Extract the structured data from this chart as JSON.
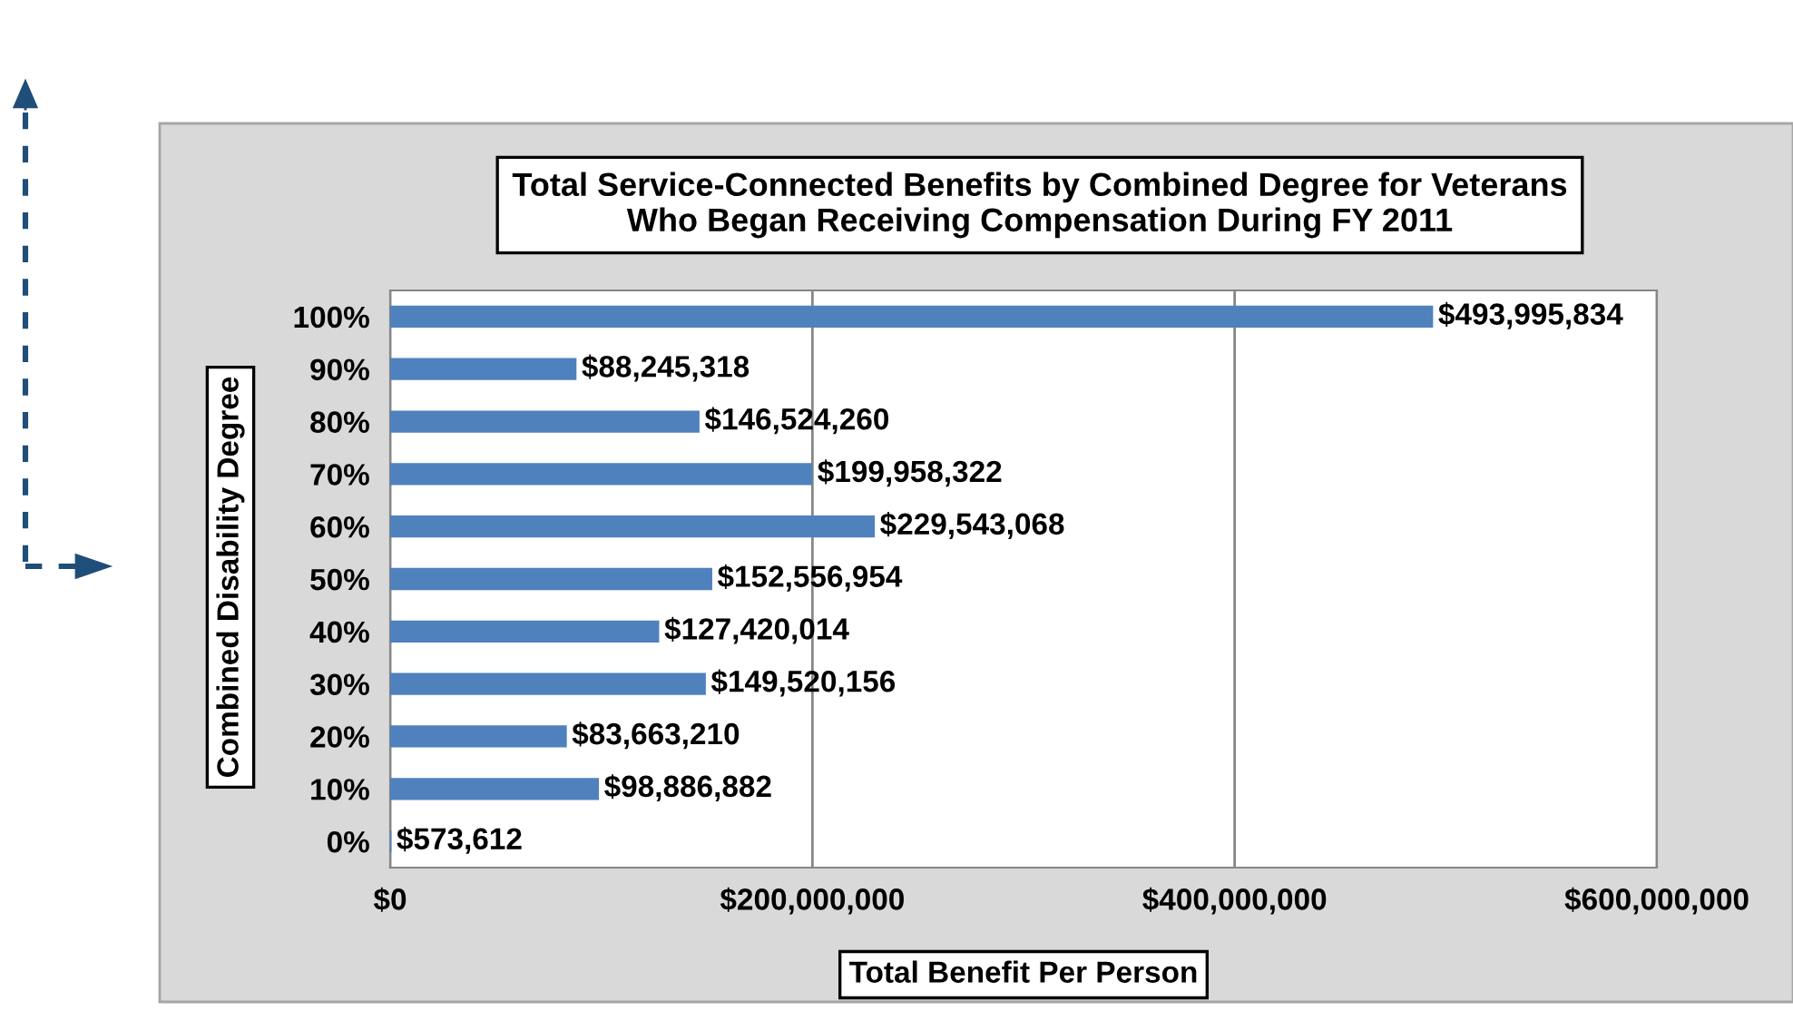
{
  "chart_data": {
    "type": "bar",
    "orientation": "horizontal",
    "title": "Total Service-Connected Benefits by Combined Degree for Veterans\nWho Began Receiving Compensation During FY 2011",
    "xlabel": "Total Benefit Per Person",
    "ylabel": "Combined Disability Degree",
    "categories": [
      "100%",
      "90%",
      "80%",
      "70%",
      "60%",
      "50%",
      "40%",
      "30%",
      "20%",
      "10%",
      "0%"
    ],
    "values": [
      493995834,
      88245318,
      146524260,
      199958322,
      229543068,
      152556954,
      127420014,
      149520156,
      83663210,
      98886882,
      573612
    ],
    "value_labels": [
      "$493,995,834",
      "$88,245,318",
      "$146,524,260",
      "$199,958,322",
      "$229,543,068",
      "$152,556,954",
      "$127,420,014",
      "$149,520,156",
      "$83,663,210",
      "$98,886,882",
      "$573,612"
    ],
    "color": "#4f81bd",
    "xlim": [
      0,
      600000000
    ],
    "xticks": [
      {
        "value": 0,
        "label": "$0"
      },
      {
        "value": 200000000,
        "label": "$200,000,000"
      },
      {
        "value": 400000000,
        "label": "$400,000,000"
      },
      {
        "value": 600000000,
        "label": "$600,000,000"
      }
    ],
    "grid": "x",
    "legend": false
  }
}
